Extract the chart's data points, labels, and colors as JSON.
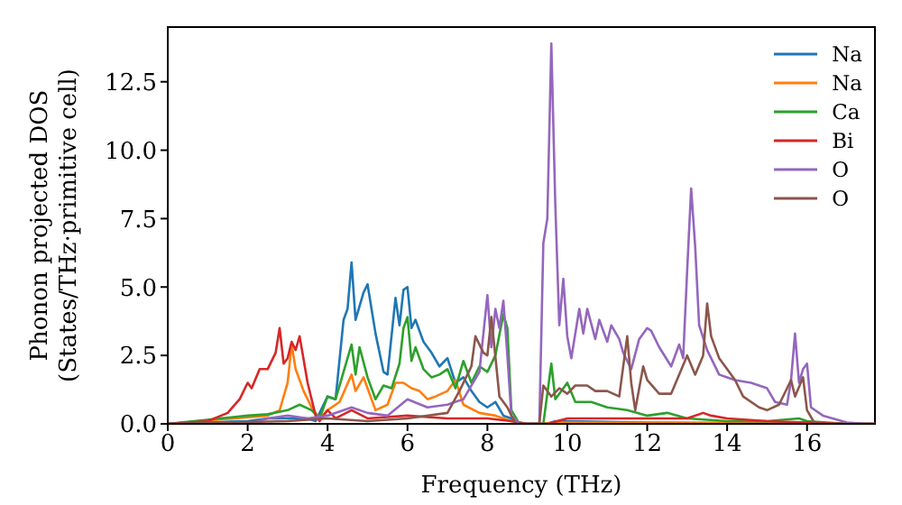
{
  "chart_data": {
    "type": "line",
    "xlabel": "Frequency (THz)",
    "ylabel": "Phonon projected DOS\n(States/THz·primitive cell)",
    "xlim": [
      0,
      17.7
    ],
    "ylim": [
      0,
      14.5
    ],
    "xticks": [
      0,
      2,
      4,
      6,
      8,
      10,
      12,
      14,
      16
    ],
    "yticks": [
      {
        "value": 0,
        "label": "0.0"
      },
      {
        "value": 2.5,
        "label": "2.5"
      },
      {
        "value": 5,
        "label": "5.0"
      },
      {
        "value": 7.5,
        "label": "7.5"
      },
      {
        "value": 10,
        "label": "10.0"
      },
      {
        "value": 12.5,
        "label": "12.5"
      }
    ],
    "legend": "top right",
    "grid": false,
    "marker": "none",
    "line_style": "solid",
    "series": [
      {
        "name": "Na",
        "color": "#1f77b4",
        "x": [
          0,
          2,
          2.5,
          3,
          3.5,
          3.7,
          4,
          4.2,
          4.4,
          4.5,
          4.6,
          4.7,
          4.9,
          5,
          5.2,
          5.4,
          5.5,
          5.7,
          5.8,
          5.9,
          6,
          6.1,
          6.2,
          6.4,
          6.6,
          6.8,
          7,
          7.2,
          7.4,
          7.6,
          7.8,
          8,
          8.2,
          8.4,
          8.6,
          8.8,
          9.5,
          9.7,
          10,
          12,
          16
        ],
        "values": [
          0,
          0.1,
          0.2,
          0.2,
          0.2,
          0.1,
          1,
          0.9,
          3.8,
          4.2,
          5.9,
          3.8,
          4.8,
          5.1,
          3.3,
          1.9,
          1.8,
          4.6,
          3.6,
          4.9,
          5,
          3.5,
          3.8,
          3,
          2.6,
          2.1,
          2.4,
          1.5,
          1.7,
          1.2,
          0.8,
          0.6,
          0.8,
          0.3,
          0.2,
          0,
          0,
          0.1,
          0.1,
          0.05,
          0.02
        ]
      },
      {
        "name": "Na",
        "color": "#ff7f0e",
        "x": [
          0,
          2.5,
          2.8,
          3,
          3.1,
          3.2,
          3.4,
          3.6,
          3.8,
          4,
          4.3,
          4.6,
          4.7,
          4.9,
          5,
          5.2,
          5.5,
          5.7,
          5.9,
          6.1,
          6.3,
          6.5,
          6.7,
          7,
          7.2,
          7.4,
          7.8,
          8.2,
          8.6,
          9,
          10,
          17,
          17.7
        ],
        "values": [
          0,
          0.3,
          0.5,
          1.5,
          2.9,
          2,
          1.2,
          0.6,
          0.2,
          0.5,
          0.8,
          1.8,
          1.2,
          1.7,
          1.3,
          0.5,
          0.7,
          1.5,
          1.5,
          1.3,
          1.2,
          0.9,
          1,
          1.2,
          1.6,
          0.7,
          0.4,
          0.3,
          0.1,
          0,
          0.05,
          0,
          0
        ]
      },
      {
        "name": "Ca",
        "color": "#2ca02c",
        "x": [
          0,
          2,
          2.5,
          3,
          3.3,
          3.6,
          3.8,
          4,
          4.2,
          4.4,
          4.6,
          4.7,
          4.8,
          5,
          5.2,
          5.4,
          5.6,
          5.8,
          5.9,
          6,
          6.1,
          6.2,
          6.4,
          6.6,
          6.8,
          7,
          7.2,
          7.4,
          7.6,
          7.8,
          8,
          8.2,
          8.4,
          8.5,
          8.6,
          8.8,
          9.4,
          9.6,
          9.7,
          10,
          10.2,
          10.6,
          11,
          11.5,
          12,
          12.5,
          13,
          14,
          15,
          15.8,
          16,
          17,
          17.7
        ],
        "values": [
          0,
          0.3,
          0.35,
          0.5,
          0.7,
          0.5,
          0.2,
          1,
          0.9,
          1.9,
          2.9,
          1.8,
          2.8,
          1.7,
          0.9,
          1.4,
          1.3,
          2.2,
          3.5,
          3.9,
          2.3,
          2.8,
          2,
          1.7,
          1.8,
          2,
          1.3,
          2.3,
          1.5,
          2.1,
          1.9,
          2.5,
          4,
          3.5,
          0.5,
          0,
          0,
          2.2,
          0.9,
          1.5,
          0.8,
          0.8,
          0.6,
          0.5,
          0.3,
          0.4,
          0.2,
          0.1,
          0.1,
          0.2,
          0.1,
          0,
          0
        ]
      },
      {
        "name": "Bi",
        "color": "#d62728",
        "x": [
          0,
          1,
          1.5,
          1.8,
          2,
          2.1,
          2.3,
          2.5,
          2.7,
          2.8,
          2.9,
          3,
          3.1,
          3.2,
          3.3,
          3.5,
          3.7,
          3.8,
          4,
          4.2,
          4.6,
          5,
          6,
          7,
          8,
          8.6,
          9,
          9.5,
          10,
          11,
          12,
          13,
          13.4,
          13.6,
          14,
          15,
          16,
          17,
          17.7
        ],
        "values": [
          0,
          0.1,
          0.4,
          0.9,
          1.5,
          1.3,
          2,
          2,
          2.6,
          3.5,
          2.2,
          2.4,
          3,
          2.7,
          3.2,
          1.5,
          0.3,
          0.1,
          0.5,
          0.2,
          0.5,
          0.2,
          0.3,
          0.2,
          0.2,
          0.1,
          0,
          0,
          0.2,
          0.2,
          0.2,
          0.2,
          0.4,
          0.3,
          0.2,
          0.1,
          0.05,
          0,
          0
        ]
      },
      {
        "name": "O",
        "color": "#9467bd",
        "x": [
          0,
          2,
          2.5,
          3,
          3.5,
          4,
          4.6,
          5,
          5.5,
          6,
          6.5,
          7,
          7.4,
          7.8,
          8,
          8.1,
          8.2,
          8.3,
          8.4,
          8.5,
          8.6,
          8.8,
          9.3,
          9.4,
          9.5,
          9.6,
          9.7,
          9.8,
          9.9,
          10,
          10.1,
          10.3,
          10.4,
          10.5,
          10.7,
          10.8,
          11,
          11.1,
          11.3,
          11.4,
          11.6,
          11.8,
          12,
          12.1,
          12.3,
          12.6,
          12.8,
          12.9,
          13,
          13.1,
          13.2,
          13.3,
          13.5,
          13.8,
          14,
          14.2,
          14.6,
          15,
          15.2,
          15.5,
          15.6,
          15.7,
          15.8,
          15.9,
          16,
          16.1,
          16.4,
          17,
          17.5,
          17.7
        ],
        "values": [
          0,
          0,
          0.2,
          0.3,
          0.2,
          0.3,
          0.6,
          0.4,
          0.3,
          0.9,
          0.6,
          0.7,
          0.9,
          1.9,
          4.7,
          2.8,
          4.2,
          3.5,
          4.5,
          2.5,
          0.3,
          0,
          0,
          6.6,
          7.5,
          13.9,
          8,
          3.6,
          5.3,
          3.2,
          2.4,
          4.2,
          3.3,
          4.2,
          3.1,
          3.8,
          3,
          3.6,
          3.1,
          2.6,
          2,
          3.1,
          3.5,
          3.4,
          2.8,
          2.1,
          2.9,
          2.4,
          5.6,
          8.6,
          6.5,
          3.6,
          2.7,
          1.8,
          1.7,
          1.6,
          1.5,
          1.3,
          0.8,
          0.7,
          1.6,
          3.3,
          1.5,
          2,
          2.2,
          0.6,
          0.3,
          0.05,
          0,
          0
        ]
      },
      {
        "name": "O",
        "color": "#8c564b",
        "x": [
          0,
          3,
          4,
          5,
          6,
          7,
          7.3,
          7.6,
          7.7,
          7.9,
          8,
          8.1,
          8.3,
          8.5,
          8.7,
          9.3,
          9.4,
          9.6,
          9.8,
          10,
          10.2,
          10.5,
          10.7,
          11,
          11.3,
          11.5,
          11.6,
          11.7,
          11.9,
          12,
          12.3,
          12.6,
          12.8,
          13,
          13.2,
          13.4,
          13.5,
          13.6,
          13.8,
          14,
          14.2,
          14.4,
          14.8,
          15,
          15.3,
          15.6,
          15.7,
          15.9,
          16,
          16.2,
          17,
          17.7
        ],
        "values": [
          0,
          0.1,
          0.2,
          0.1,
          0.2,
          0.4,
          1.2,
          2.1,
          3.2,
          2.6,
          2.5,
          3.9,
          1,
          0.6,
          0,
          0,
          1.4,
          1,
          1.3,
          1.1,
          1.4,
          1.4,
          1.2,
          1.2,
          1,
          3.2,
          1.5,
          0.5,
          2.1,
          1.6,
          1.1,
          1.1,
          1.8,
          2.5,
          1.8,
          2.5,
          4.4,
          3.2,
          2.4,
          2,
          1.6,
          1,
          0.6,
          0.5,
          0.7,
          1.6,
          1,
          1.7,
          0.5,
          0,
          0,
          0
        ]
      }
    ]
  }
}
